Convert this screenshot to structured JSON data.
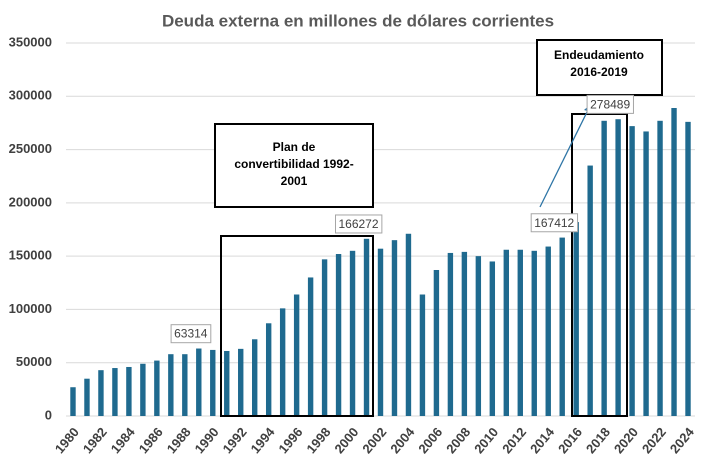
{
  "chart_data": {
    "type": "bar",
    "title": "Deuda externa en millones de dólares corrientes",
    "categories": [
      "1980",
      null,
      "1982",
      null,
      "1984",
      null,
      "1986",
      null,
      "1988",
      null,
      "1990",
      null,
      "1992",
      null,
      "1994",
      null,
      "1996",
      null,
      "1998",
      null,
      "2000",
      null,
      "2002",
      null,
      "2004",
      null,
      "2006",
      null,
      "2008",
      null,
      "2010",
      null,
      "2012",
      null,
      "2014",
      null,
      "2016",
      null,
      "2018",
      null,
      "2020",
      null,
      "2022",
      null,
      "2024"
    ],
    "values": [
      27000,
      35000,
      43000,
      45000,
      46000,
      49000,
      52000,
      58000,
      58000,
      63314,
      62000,
      61000,
      63000,
      72000,
      87000,
      101000,
      114000,
      130000,
      147000,
      152000,
      155000,
      166272,
      157000,
      165000,
      171000,
      114000,
      137000,
      153000,
      154000,
      150000,
      145000,
      156000,
      156000,
      155000,
      159000,
      167412,
      182000,
      235000,
      277000,
      278489,
      272000,
      267000,
      277000,
      289000,
      276000
    ],
    "value_labels": [
      null,
      null,
      null,
      null,
      null,
      null,
      null,
      null,
      null,
      "63314",
      null,
      null,
      null,
      null,
      null,
      null,
      null,
      null,
      null,
      null,
      null,
      "166272",
      null,
      null,
      null,
      null,
      null,
      null,
      null,
      null,
      null,
      null,
      null,
      null,
      null,
      "167412",
      null,
      null,
      null,
      "278489",
      null,
      null,
      null,
      null,
      null
    ],
    "color": "#1f6a8f",
    "ylim": [
      0,
      350000
    ],
    "yticks": [
      0,
      50000,
      100000,
      150000,
      200000,
      250000,
      300000,
      350000
    ],
    "grid": true,
    "annotations": [
      {
        "lines": [
          "Plan de",
          "convertibilidad  1992-",
          "2001"
        ]
      },
      {
        "lines": [
          "Endeudamiento",
          "2016-2019"
        ]
      }
    ]
  }
}
